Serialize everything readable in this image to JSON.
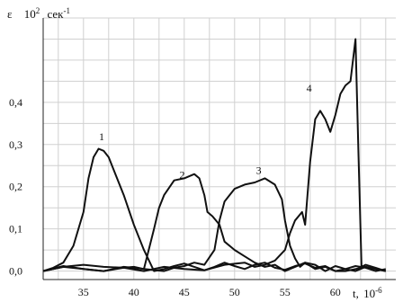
{
  "chart_data": {
    "type": "line",
    "title": "",
    "y_axis": {
      "symbol": "ε",
      "unit_base": "10",
      "unit_exp": "2",
      "unit_word": "сек",
      "unit_word_exp": "-1"
    },
    "x_axis": {
      "symbol": "t,",
      "unit_base": "10",
      "unit_exp": "-6"
    },
    "xlim": [
      31,
      66
    ],
    "ylim": [
      -0.02,
      0.6
    ],
    "x_ticks": [
      {
        "value": 35,
        "label": "35"
      },
      {
        "value": 40,
        "label": "40"
      },
      {
        "value": 45,
        "label": "45"
      },
      {
        "value": 50,
        "label": "50"
      },
      {
        "value": 55,
        "label": "55"
      },
      {
        "value": 60,
        "label": "60"
      }
    ],
    "y_ticks": [
      {
        "value": 0.0,
        "label": "0,0"
      },
      {
        "value": 0.1,
        "label": "0,1"
      },
      {
        "value": 0.2,
        "label": "0,2"
      },
      {
        "value": 0.3,
        "label": "0,3"
      },
      {
        "value": 0.4,
        "label": "0,4"
      }
    ],
    "grid": true,
    "legend": "none",
    "series": [
      {
        "label": "1",
        "label_at": [
          36.8,
          0.31
        ],
        "x": [
          31,
          32,
          33,
          34,
          35,
          35.5,
          36,
          36.5,
          37,
          37.5,
          38,
          39,
          40,
          41,
          42,
          43,
          44,
          45,
          46,
          47,
          48,
          49,
          50,
          51,
          52,
          53,
          54,
          55,
          56,
          57,
          58,
          59,
          60,
          61,
          62,
          63,
          64,
          65
        ],
        "y": [
          0.0,
          0.008,
          0.02,
          0.06,
          0.14,
          0.22,
          0.27,
          0.29,
          0.285,
          0.27,
          0.24,
          0.18,
          0.11,
          0.05,
          0.0,
          0.005,
          0.012,
          0.018,
          0.01,
          0.002,
          0.01,
          0.02,
          0.012,
          0.005,
          0.015,
          0.02,
          0.008,
          0.003,
          0.012,
          0.018,
          0.008,
          0.012,
          0.0,
          0.005,
          0.012,
          0.008,
          0.0,
          0.005
        ]
      },
      {
        "label": "2",
        "label_at": [
          44.8,
          0.22
        ],
        "x": [
          31,
          33,
          35,
          37,
          39,
          40,
          41,
          42,
          42.5,
          43,
          44,
          45,
          46,
          46.5,
          47,
          47.3,
          47.8,
          48.5,
          49,
          50,
          51,
          52,
          53,
          54,
          55,
          56,
          57,
          58,
          59,
          60,
          61,
          62,
          63,
          64,
          65
        ],
        "y": [
          0.0,
          0.01,
          0.015,
          0.01,
          0.008,
          0.01,
          0.005,
          0.1,
          0.15,
          0.18,
          0.215,
          0.22,
          0.23,
          0.22,
          0.18,
          0.14,
          0.13,
          0.11,
          0.07,
          0.05,
          0.035,
          0.02,
          0.01,
          0.015,
          0.0,
          0.01,
          0.02,
          0.005,
          0.01,
          0.0,
          0.0,
          0.005,
          0.01,
          0.005,
          0.0
        ]
      },
      {
        "label": "3",
        "label_at": [
          52.4,
          0.23
        ],
        "x": [
          31,
          33,
          35,
          37,
          39,
          41,
          43,
          44,
          45,
          46,
          47,
          48,
          48.5,
          49,
          50,
          51,
          52,
          53,
          54,
          54.7,
          55,
          55.5,
          56,
          56.5,
          57,
          58,
          59,
          60,
          61,
          62,
          63,
          64,
          65
        ],
        "y": [
          0.0,
          0.012,
          0.005,
          0.0,
          0.01,
          0.005,
          0.0,
          0.008,
          0.012,
          0.02,
          0.015,
          0.05,
          0.12,
          0.165,
          0.195,
          0.205,
          0.21,
          0.22,
          0.205,
          0.17,
          0.12,
          0.06,
          0.03,
          0.01,
          0.02,
          0.015,
          0.0,
          0.012,
          0.005,
          0.0,
          0.01,
          0.005,
          0.0
        ]
      },
      {
        "label": "4",
        "label_at": [
          57.4,
          0.425
        ],
        "x": [
          31,
          33,
          35,
          37,
          39,
          41,
          43,
          45,
          47,
          49,
          51,
          52,
          53,
          54,
          55,
          55.5,
          56,
          56.7,
          57,
          57.5,
          58,
          58.5,
          59,
          59.5,
          60,
          60.5,
          61,
          61.5,
          62,
          62.3,
          62.6,
          63,
          64,
          65
        ],
        "y": [
          0.0,
          0.01,
          0.005,
          0.0,
          0.008,
          0.0,
          0.01,
          0.005,
          0.002,
          0.015,
          0.02,
          0.01,
          0.015,
          0.025,
          0.05,
          0.09,
          0.12,
          0.14,
          0.11,
          0.26,
          0.36,
          0.38,
          0.36,
          0.33,
          0.37,
          0.42,
          0.44,
          0.45,
          0.55,
          0.27,
          0.01,
          0.015,
          0.008,
          0.0
        ]
      }
    ]
  }
}
